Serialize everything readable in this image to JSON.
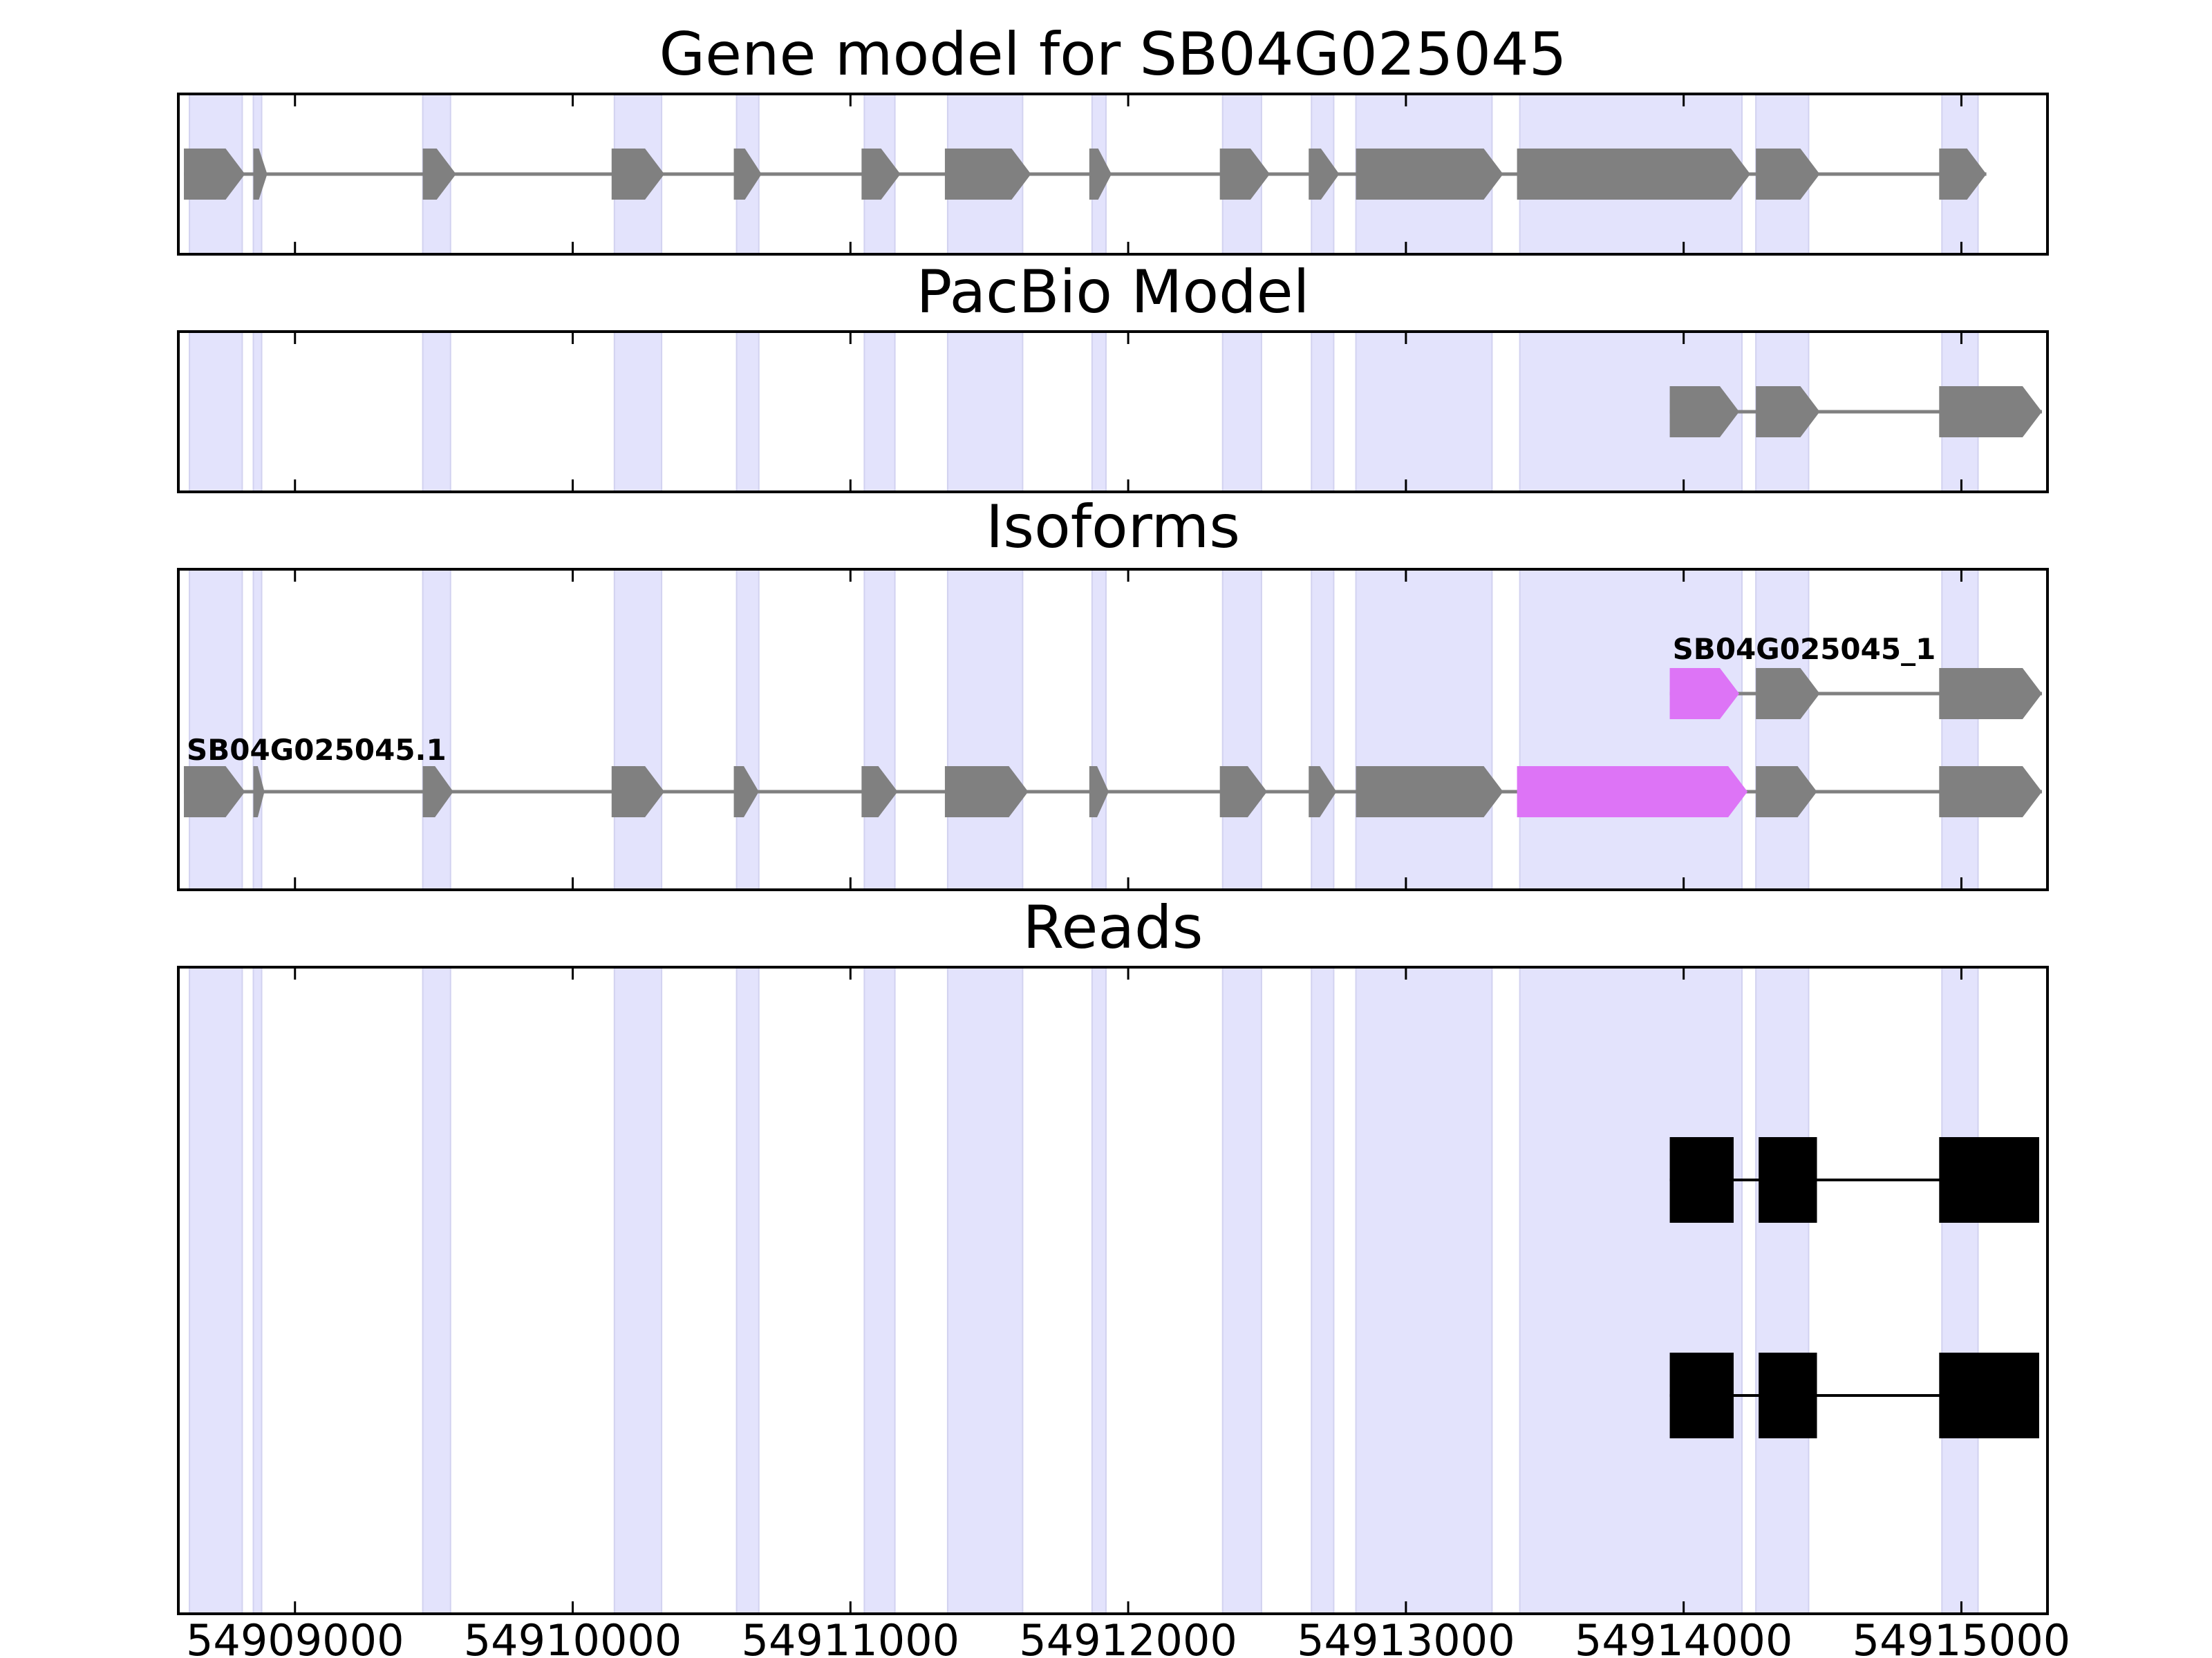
{
  "colors": {
    "exon_band": "#e3e3fc",
    "exon_band_edge": "#d2d2f0",
    "exon": "#808080",
    "highlight_exon": "#dd74f6",
    "read": "#000000",
    "intron": "#808080",
    "frame": "#000000"
  },
  "chart_data": {
    "type": "gene-structure",
    "xlim": [
      54908580,
      54915310
    ],
    "xticks": [
      54909000,
      54910000,
      54911000,
      54912000,
      54913000,
      54914000,
      54915000
    ],
    "xtick_labels": [
      "54909000",
      "54910000",
      "54911000",
      "54912000",
      "54913000",
      "54914000",
      "54915000"
    ],
    "exon_bands": [
      [
        54908620,
        54908810
      ],
      [
        54908850,
        54908880
      ],
      [
        54909460,
        54909560
      ],
      [
        54910150,
        54910320
      ],
      [
        54910590,
        54910670
      ],
      [
        54911050,
        54911160
      ],
      [
        54911350,
        54911620
      ],
      [
        54911870,
        54911920
      ],
      [
        54912340,
        54912480
      ],
      [
        54912660,
        54912740
      ],
      [
        54912820,
        54913310
      ],
      [
        54913410,
        54914210
      ],
      [
        54914260,
        54914450
      ],
      [
        54914930,
        54915060
      ]
    ],
    "panels": [
      {
        "title": "Gene model for SB04G025045",
        "tracks": [
          {
            "label": "",
            "kind": "gene",
            "exons": [
              [
                54908600,
                54908820
              ],
              [
                54908850,
                54908900
              ],
              [
                54909460,
                54909580
              ],
              [
                54910140,
                54910330
              ],
              [
                54910580,
                54910680
              ],
              [
                54911040,
                54911180
              ],
              [
                54911340,
                54911650
              ],
              [
                54911860,
                54911940
              ],
              [
                54912330,
                54912510
              ],
              [
                54912650,
                54912760
              ],
              [
                54912820,
                54913350
              ],
              [
                54913400,
                54914240
              ],
              [
                54914260,
                54914490
              ],
              [
                54914920,
                54915090
              ]
            ],
            "highlight": []
          }
        ]
      },
      {
        "title": "PacBio Model",
        "tracks": [
          {
            "label": "",
            "kind": "gene",
            "exons": [
              [
                54913950,
                54914200
              ],
              [
                54914260,
                54914490
              ],
              [
                54914920,
                54915290
              ]
            ],
            "highlight": []
          }
        ]
      },
      {
        "title": "Isoforms",
        "tracks": [
          {
            "label": "SB04G025045_1",
            "kind": "gene",
            "exons": [
              [
                54913950,
                54914200
              ],
              [
                54914260,
                54914490
              ],
              [
                54914920,
                54915290
              ]
            ],
            "highlight": [
              0
            ]
          },
          {
            "label": "SB04G025045.1",
            "kind": "gene",
            "exons": [
              [
                54908600,
                54908820
              ],
              [
                54908850,
                54908890
              ],
              [
                54909460,
                54909570
              ],
              [
                54910140,
                54910330
              ],
              [
                54910580,
                54910670
              ],
              [
                54911040,
                54911170
              ],
              [
                54911340,
                54911640
              ],
              [
                54911860,
                54911930
              ],
              [
                54912330,
                54912500
              ],
              [
                54912650,
                54912750
              ],
              [
                54912820,
                54913350
              ],
              [
                54913400,
                54914230
              ],
              [
                54914260,
                54914480
              ],
              [
                54914920,
                54915290
              ]
            ],
            "highlight": [
              11
            ]
          }
        ]
      },
      {
        "title": "Reads",
        "tracks": [
          {
            "label": "",
            "kind": "read",
            "exons": [
              [
                54913950,
                54914180
              ],
              [
                54914270,
                54914480
              ],
              [
                54914920,
                54915280
              ]
            ],
            "highlight": []
          },
          {
            "label": "",
            "kind": "read",
            "exons": [
              [
                54913950,
                54914180
              ],
              [
                54914270,
                54914480
              ],
              [
                54914920,
                54915280
              ]
            ],
            "highlight": []
          }
        ]
      }
    ]
  }
}
